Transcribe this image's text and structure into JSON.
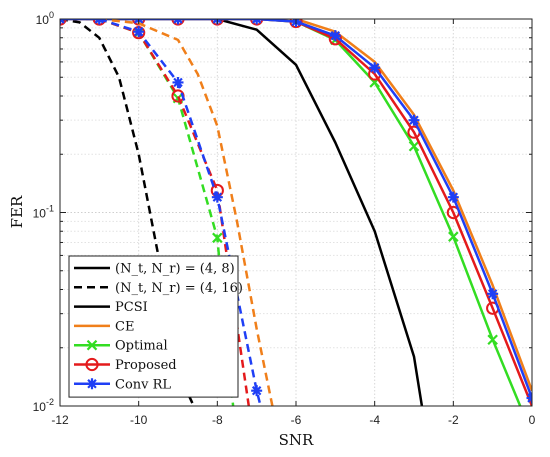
{
  "chart_data": {
    "type": "line",
    "xlabel": "SNR",
    "ylabel": "FER",
    "xlim": [
      -12,
      0
    ],
    "ylim": [
      0.01,
      1
    ],
    "y_scale": "log",
    "grid": true,
    "legend_position": "bottom-left",
    "x_ticks": [
      "-12",
      "-10",
      "-8",
      "-6",
      "-4",
      "-2",
      "0"
    ],
    "y_ticks": [
      {
        "base": "10",
        "exp": "0",
        "value": 1
      },
      {
        "base": "10",
        "exp": "-1",
        "value": 0.1
      },
      {
        "base": "10",
        "exp": "-2",
        "value": 0.01
      }
    ],
    "legend": [
      {
        "name": "(N_t, N_r) = (4, 8)",
        "color": "#000000",
        "dash": "solid",
        "marker": "none"
      },
      {
        "name": "(N_t, N_r) = (4, 16)",
        "color": "#000000",
        "dash": "dashed",
        "marker": "none"
      },
      {
        "name": "PCSI",
        "color": "#000000",
        "dash": "solid",
        "marker": "none"
      },
      {
        "name": "CE",
        "color": "#f07f1a",
        "dash": "solid",
        "marker": "none"
      },
      {
        "name": "Optimal",
        "color": "#33dd22",
        "dash": "solid",
        "marker": "x"
      },
      {
        "name": "Proposed",
        "color": "#e41a1c",
        "dash": "solid",
        "marker": "circle"
      },
      {
        "name": "Conv RL",
        "color": "#1f3ff5",
        "dash": "solid",
        "marker": "star"
      }
    ],
    "series": [
      {
        "group": "(4,8)",
        "method": "PCSI",
        "color": "#000000",
        "dash": "solid",
        "marker": "none",
        "x": [
          -8,
          -7,
          -6,
          -5,
          -4,
          -3,
          -2.8
        ],
        "y": [
          1.0,
          0.88,
          0.58,
          0.23,
          0.08,
          0.018,
          0.01
        ]
      },
      {
        "group": "(4,8)",
        "method": "CE",
        "color": "#f07f1a",
        "dash": "solid",
        "marker": "none",
        "x": [
          -6,
          -5,
          -4,
          -3,
          -2,
          -1,
          0
        ],
        "y": [
          1.0,
          0.86,
          0.6,
          0.32,
          0.13,
          0.042,
          0.012
        ]
      },
      {
        "group": "(4,8)",
        "method": "Optimal",
        "color": "#33dd22",
        "dash": "solid",
        "marker": "x",
        "x": [
          -12,
          -11,
          -10,
          -9,
          -8,
          -7,
          -6,
          -5,
          -4,
          -3,
          -2,
          -1,
          -0.3
        ],
        "y": [
          1,
          1,
          1,
          1,
          1,
          1,
          0.97,
          0.78,
          0.47,
          0.22,
          0.075,
          0.022,
          0.01
        ]
      },
      {
        "group": "(4,8)",
        "method": "Proposed",
        "color": "#e41a1c",
        "dash": "solid",
        "marker": "circle",
        "x": [
          -12,
          -11,
          -10,
          -9,
          -8,
          -7,
          -6,
          -5,
          -4,
          -3,
          -2,
          -1,
          0
        ],
        "y": [
          1,
          1,
          1,
          1,
          1,
          1,
          0.97,
          0.79,
          0.52,
          0.26,
          0.1,
          0.032,
          0.01
        ]
      },
      {
        "group": "(4,8)",
        "method": "Conv RL",
        "color": "#1f3ff5",
        "dash": "solid",
        "marker": "star",
        "x": [
          -12,
          -11,
          -10,
          -9,
          -8,
          -7,
          -6,
          -5,
          -4,
          -3,
          -2,
          -1,
          0
        ],
        "y": [
          1,
          1,
          1,
          1,
          1,
          1,
          0.97,
          0.82,
          0.56,
          0.3,
          0.12,
          0.038,
          0.011
        ]
      },
      {
        "group": "(4,16)",
        "method": "PCSI",
        "color": "#000000",
        "dash": "dashed",
        "marker": "none",
        "x": [
          -12,
          -11.5,
          -11,
          -10.5,
          -10,
          -9.5,
          -9,
          -8.6
        ],
        "y": [
          1.0,
          0.96,
          0.8,
          0.5,
          0.2,
          0.06,
          0.015,
          0.01
        ]
      },
      {
        "group": "(4,16)",
        "method": "CE",
        "color": "#f07f1a",
        "dash": "dashed",
        "marker": "none",
        "x": [
          -12,
          -11,
          -10,
          -9,
          -8.5,
          -8,
          -7.5,
          -7,
          -6.6
        ],
        "y": [
          1.0,
          1.0,
          0.95,
          0.78,
          0.52,
          0.28,
          0.09,
          0.025,
          0.01
        ]
      },
      {
        "group": "(4,16)",
        "method": "Optimal",
        "color": "#33dd22",
        "dash": "dashed",
        "marker": "x",
        "x": [
          -12,
          -11,
          -10,
          -9,
          -8,
          -7.6
        ],
        "y": [
          1,
          1,
          0.85,
          0.39,
          0.074,
          0.01
        ]
      },
      {
        "group": "(4,16)",
        "method": "Proposed",
        "color": "#e41a1c",
        "dash": "dashed",
        "marker": "circle",
        "x": [
          -12,
          -11,
          -10,
          -9,
          -8,
          -7.2
        ],
        "y": [
          1,
          1,
          0.85,
          0.4,
          0.13,
          0.01
        ]
      },
      {
        "group": "(4,16)",
        "method": "Conv RL",
        "color": "#1f3ff5",
        "dash": "dashed",
        "marker": "star",
        "x": [
          -12,
          -11,
          -10,
          -9,
          -8,
          -7,
          -6.9
        ],
        "y": [
          1,
          1,
          0.86,
          0.47,
          0.12,
          0.012,
          0.01
        ]
      }
    ]
  }
}
